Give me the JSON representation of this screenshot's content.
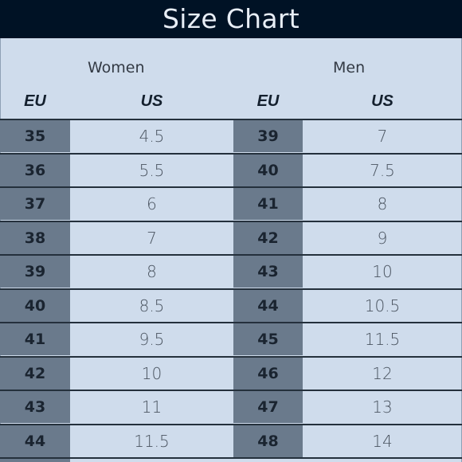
{
  "title": "Size Chart",
  "groups": {
    "women": {
      "label": "Women",
      "eu_header": "EU",
      "us_header": "US",
      "rows": [
        {
          "eu": "35",
          "us": "4.5"
        },
        {
          "eu": "36",
          "us": "5.5"
        },
        {
          "eu": "37",
          "us": "6"
        },
        {
          "eu": "38",
          "us": "7"
        },
        {
          "eu": "39",
          "us": "8"
        },
        {
          "eu": "40",
          "us": "8.5"
        },
        {
          "eu": "41",
          "us": "9.5"
        },
        {
          "eu": "42",
          "us": "10"
        },
        {
          "eu": "43",
          "us": "11"
        },
        {
          "eu": "44",
          "us": "11.5"
        }
      ]
    },
    "men": {
      "label": "Men",
      "eu_header": "EU",
      "us_header": "US",
      "rows": [
        {
          "eu": "39",
          "us": "7"
        },
        {
          "eu": "40",
          "us": "7.5"
        },
        {
          "eu": "41",
          "us": "8"
        },
        {
          "eu": "42",
          "us": "9"
        },
        {
          "eu": "43",
          "us": "10"
        },
        {
          "eu": "44",
          "us": "10.5"
        },
        {
          "eu": "45",
          "us": "11.5"
        },
        {
          "eu": "46",
          "us": "12"
        },
        {
          "eu": "47",
          "us": "13"
        },
        {
          "eu": "48",
          "us": "14"
        }
      ]
    }
  },
  "colors": {
    "title_bar": "#001225",
    "background": "#cfdcec",
    "eu_column": "#6a7a8c",
    "row_divider": "#24303c"
  }
}
